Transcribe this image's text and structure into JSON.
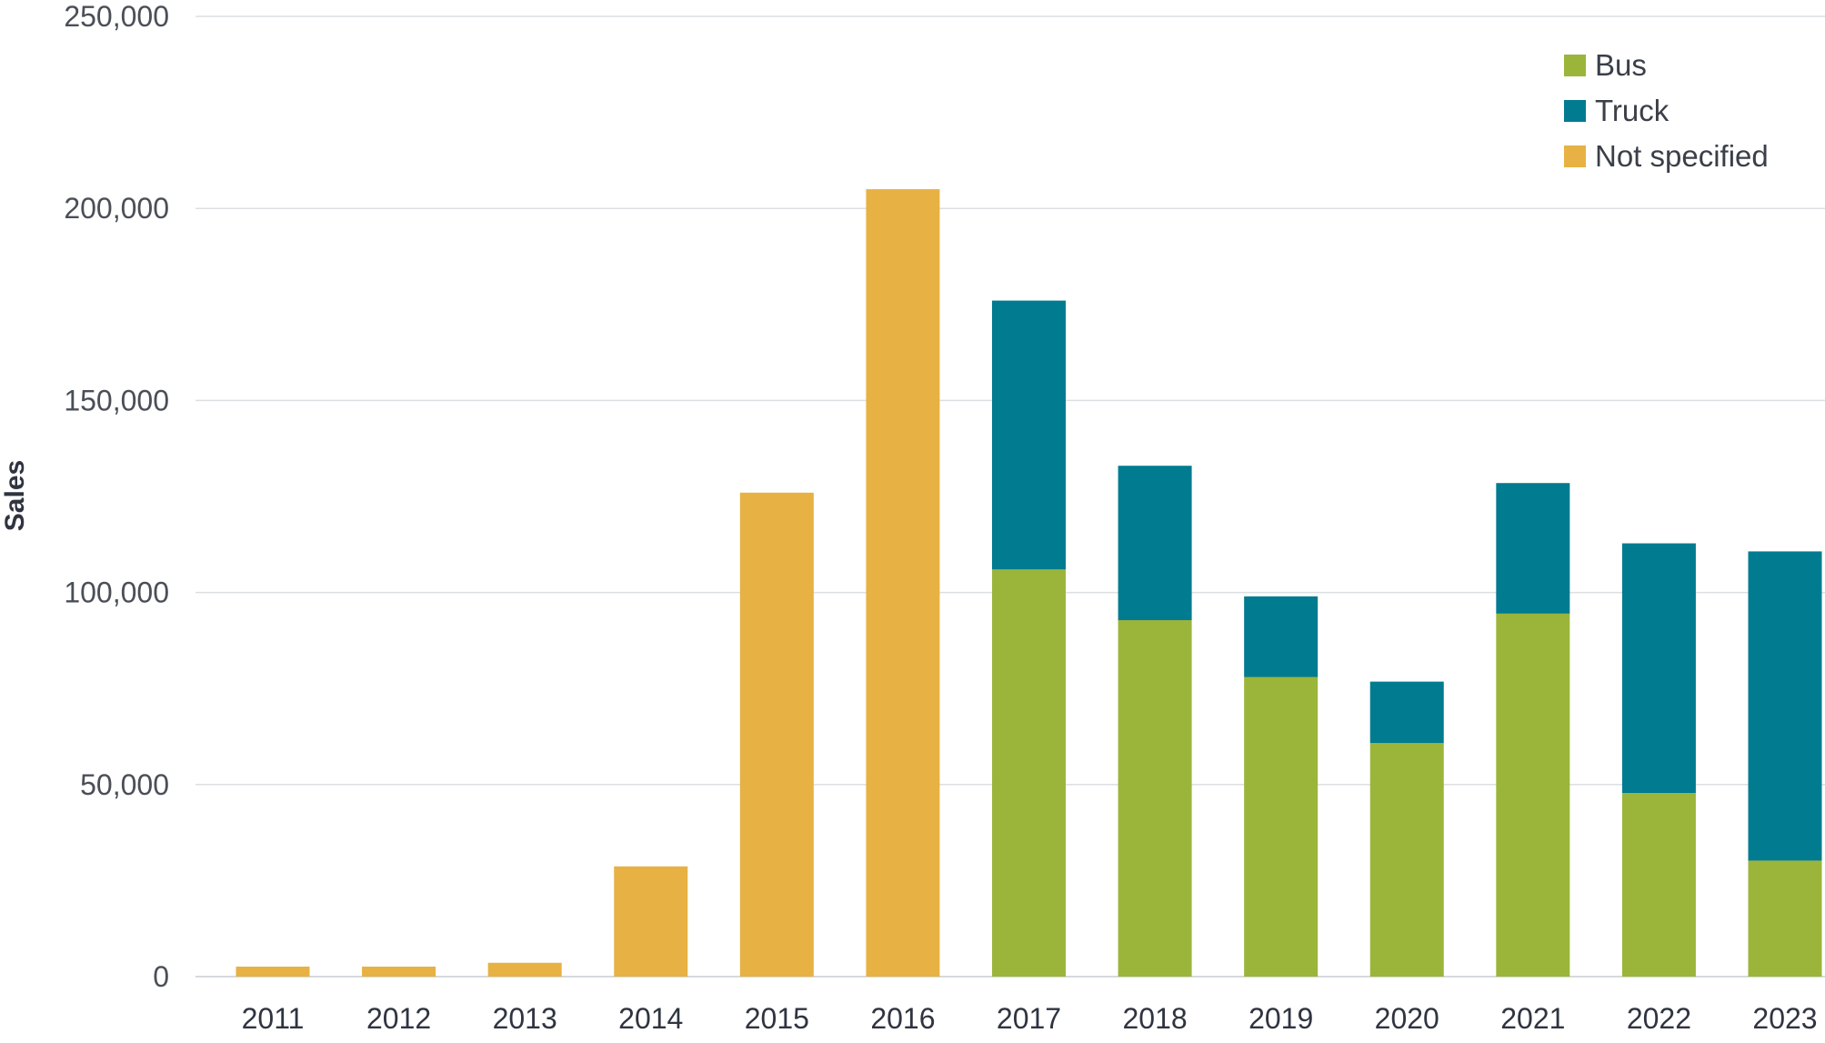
{
  "chart_data": {
    "type": "bar",
    "stacked": true,
    "title": "",
    "xlabel": "",
    "ylabel": "Sales",
    "ylim": [
      0,
      250000
    ],
    "yticks": [
      0,
      50000,
      100000,
      150000,
      200000,
      250000
    ],
    "ytick_labels": [
      "0",
      "50,000",
      "100,000",
      "150,000",
      "200,000",
      "250,000"
    ],
    "grid": true,
    "legend_position": "top-right",
    "categories": [
      "2011",
      "2012",
      "2013",
      "2014",
      "2015",
      "2016",
      "2017",
      "2018",
      "2019",
      "2020",
      "2021",
      "2022",
      "2023"
    ],
    "series": [
      {
        "name": "Bus",
        "color": "#9bb53b",
        "values": [
          0,
          0,
          0,
          0,
          0,
          0,
          106000,
          92800,
          78000,
          60800,
          94500,
          47800,
          30200
        ]
      },
      {
        "name": "Truck",
        "color": "#007b8f",
        "values": [
          0,
          0,
          0,
          0,
          0,
          0,
          70000,
          40200,
          21000,
          16000,
          34000,
          65000,
          80500
        ]
      },
      {
        "name": "Not specified",
        "color": "#e7b143",
        "values": [
          2600,
          2600,
          3600,
          28700,
          126000,
          205000,
          0,
          0,
          0,
          0,
          0,
          0,
          0
        ]
      }
    ],
    "legend_order": [
      "Bus",
      "Truck",
      "Not specified"
    ]
  }
}
